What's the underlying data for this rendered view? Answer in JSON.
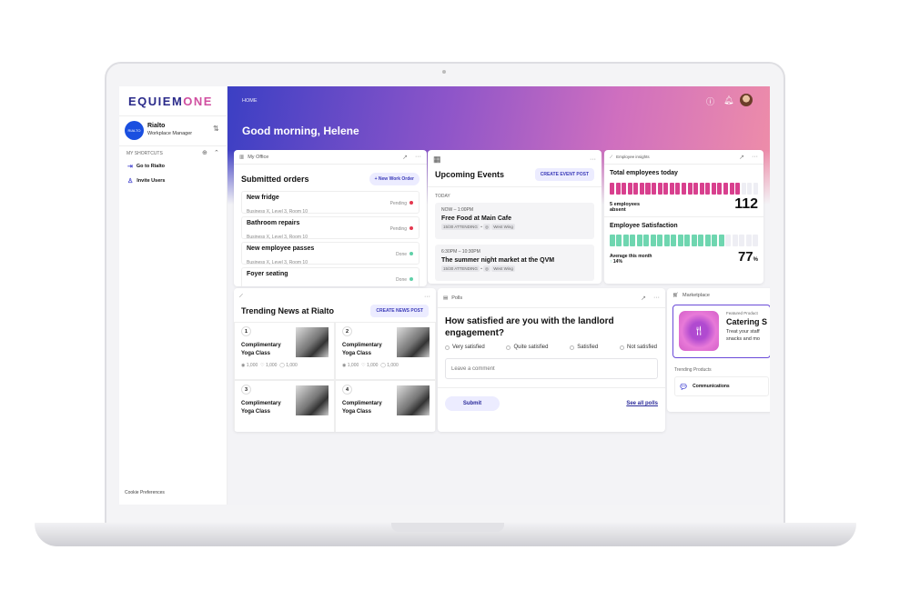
{
  "brand": {
    "logo_a": "EQUIEM",
    "logo_b": "ONE"
  },
  "profile": {
    "avatar_text": "RIALTO",
    "name": "Rialto",
    "role": "Workplace Manager"
  },
  "shortcuts": {
    "heading": "MY SHORTCUTS",
    "items": [
      {
        "label": "Go to Rialto",
        "icon": "exit-icon"
      },
      {
        "label": "Invite Users",
        "icon": "user-icon"
      }
    ]
  },
  "cookie": "Cookie Preferences",
  "header": {
    "breadcrumb": "HOME",
    "greeting": "Good morning, Helene"
  },
  "office": {
    "header": "My Office",
    "title": "Submitted orders",
    "button": "New Work Order",
    "orders": [
      {
        "name": "New fridge",
        "loc": "Business X, Level 3, Room 10",
        "status": "Pending",
        "color": "#e53950"
      },
      {
        "name": "Bathroom repairs",
        "loc": "Business X, Level 3, Room 10",
        "status": "Pending",
        "color": "#e53950"
      },
      {
        "name": "New employee passes",
        "loc": "Business X, Level 3, Room 10",
        "status": "Done",
        "color": "#5fd0a8"
      },
      {
        "name": "Foyer seating",
        "loc": "",
        "status": "Done",
        "color": "#5fd0a8"
      }
    ]
  },
  "events": {
    "title": "Upcoming Events",
    "button": "CREATE EVENT POST",
    "day": "TODAY",
    "items": [
      {
        "time": "NOW – 1:00PM",
        "name": "Free Food at Main Cafe",
        "attending": "15/30 ATTENDING",
        "location": "West Wing"
      },
      {
        "time": "6:30PM – 10:30PM",
        "name": "The summer night market at the QVM",
        "attending": "15/30 ATTENDING",
        "location": "West Wing"
      }
    ]
  },
  "insights": {
    "header": "Employee insights",
    "total_title": "Total employees today",
    "absent": "5 employees absent",
    "total": "112",
    "total_fill": 0.88,
    "sat_title": "Employee Satisfaction",
    "sat_label": "Average this month",
    "sat_change": "14%",
    "sat_value": "77",
    "sat_unit": "%",
    "sat_fill": 0.77,
    "pink": "#d8408e",
    "green": "#6fd6b0"
  },
  "news": {
    "title": "Trending News at Rialto",
    "button": "CREATE NEWS POST",
    "items": [
      {
        "n": "1",
        "title": "Complimentary Yoga Class",
        "views": "1,000",
        "likes": "1,000",
        "comments": "1,000"
      },
      {
        "n": "2",
        "title": "Complimentary Yoga Class",
        "views": "1,000",
        "likes": "1,000",
        "comments": "1,000"
      },
      {
        "n": "3",
        "title": "Complimentary Yoga Class"
      },
      {
        "n": "4",
        "title": "Complimentary Yoga Class"
      }
    ]
  },
  "polls": {
    "header": "Polls",
    "question": "How satisfied are you with the landlord engagement?",
    "options": [
      "Very satisfied",
      "Quite satisfied",
      "Satisfied",
      "Not satisfied"
    ],
    "comment_placeholder": "Leave a comment",
    "submit": "Submit",
    "see_all": "See all polls"
  },
  "market": {
    "header": "Marketplace",
    "featured_label": "Featured Product",
    "featured_name": "Catering S",
    "featured_desc": "Treat your staff snacks and mo",
    "trending": "Trending Products",
    "product": "Communications"
  }
}
